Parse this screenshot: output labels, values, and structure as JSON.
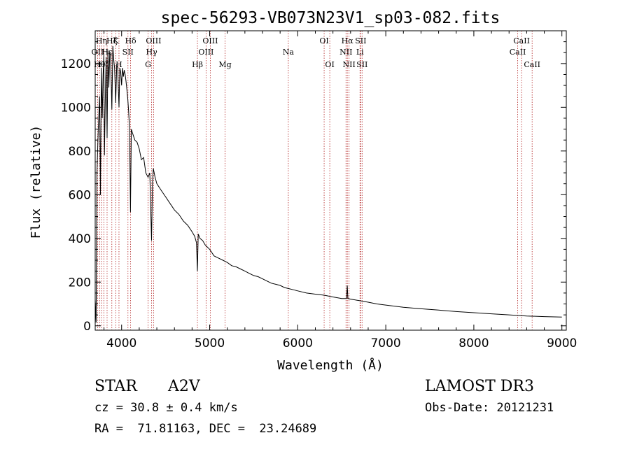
{
  "chart_data": {
    "type": "line",
    "title": "spec-56293-VB073N23V1_sp03-082.fits",
    "xlabel": "Wavelength (Å)",
    "ylabel": "Flux (relative)",
    "xlim": [
      3700,
      9050
    ],
    "ylim": [
      -20,
      1350
    ],
    "xticks": [
      4000,
      5000,
      6000,
      7000,
      8000,
      9000
    ],
    "xtick_labels": [
      "4000",
      "5000",
      "6000",
      "7000",
      "8000",
      "9000"
    ],
    "yticks": [
      0,
      200,
      400,
      600,
      800,
      1000,
      1200
    ],
    "ytick_labels": [
      "0",
      "200",
      "400",
      "600",
      "800",
      "1000",
      "1200"
    ],
    "series": [
      {
        "name": "flux",
        "x": [
          3700,
          3710,
          3720,
          3735,
          3750,
          3760,
          3770,
          3780,
          3790,
          3798,
          3805,
          3815,
          3825,
          3835,
          3845,
          3855,
          3865,
          3875,
          3889,
          3900,
          3910,
          3920,
          3933,
          3945,
          3955,
          3970,
          3980,
          3990,
          4000,
          4010,
          4020,
          4030,
          4040,
          4050,
          4060,
          4070,
          4080,
          4090,
          4101,
          4110,
          4125,
          4150,
          4175,
          4200,
          4225,
          4250,
          4275,
          4300,
          4320,
          4340,
          4350,
          4360,
          4380,
          4400,
          4450,
          4500,
          4550,
          4600,
          4650,
          4700,
          4750,
          4800,
          4830,
          4850,
          4861,
          4870,
          4890,
          4920,
          4950,
          5000,
          5050,
          5100,
          5150,
          5200,
          5250,
          5300,
          5350,
          5400,
          5450,
          5500,
          5550,
          5600,
          5650,
          5700,
          5750,
          5800,
          5850,
          5900,
          5950,
          6000,
          6100,
          6200,
          6300,
          6400,
          6500,
          6555,
          6563,
          6570,
          6600,
          6700,
          6800,
          6900,
          7000,
          7200,
          7400,
          7600,
          7800,
          8000,
          8200,
          8400,
          8600,
          8800,
          9000
        ],
        "values": [
          120,
          15,
          700,
          900,
          1050,
          600,
          1180,
          950,
          1150,
          1240,
          780,
          1050,
          1230,
          860,
          1260,
          1090,
          1250,
          1240,
          990,
          1280,
          1220,
          1180,
          1020,
          1200,
          1180,
          1000,
          1180,
          1160,
          1100,
          1180,
          1140,
          1170,
          1150,
          1120,
          1080,
          1040,
          980,
          900,
          520,
          900,
          880,
          850,
          840,
          810,
          760,
          770,
          700,
          680,
          700,
          390,
          650,
          720,
          680,
          650,
          620,
          590,
          560,
          530,
          510,
          480,
          460,
          430,
          410,
          380,
          250,
          420,
          400,
          390,
          370,
          350,
          320,
          310,
          300,
          290,
          275,
          270,
          260,
          250,
          240,
          230,
          225,
          215,
          205,
          195,
          190,
          185,
          175,
          170,
          165,
          160,
          150,
          145,
          140,
          132,
          125,
          125,
          185,
          125,
          122,
          115,
          108,
          100,
          95,
          85,
          78,
          72,
          65,
          60,
          55,
          50,
          45,
          42,
          40
        ]
      }
    ],
    "lines": [
      {
        "wavelength": 3727,
        "label": "OII",
        "row": 2
      },
      {
        "wavelength": 3750,
        "label": "Hθ",
        "row": 3
      },
      {
        "wavelength": 3771,
        "label": "Hη",
        "row": 1
      },
      {
        "wavelength": 3798,
        "label": "Hζ",
        "row": 3
      },
      {
        "wavelength": 3835,
        "label": "Hε",
        "row": 2
      },
      {
        "wavelength": 3889,
        "label": "Hζ",
        "row": 1
      },
      {
        "wavelength": 3934,
        "label": "K",
        "row": 1
      },
      {
        "wavelength": 3970,
        "label": "H",
        "row": 3
      },
      {
        "wavelength": 4072,
        "label": "SII",
        "row": 2
      },
      {
        "wavelength": 4102,
        "label": "Hδ",
        "row": 1
      },
      {
        "wavelength": 4300,
        "label": "G",
        "row": 3
      },
      {
        "wavelength": 4341,
        "label": "Hγ",
        "row": 2
      },
      {
        "wavelength": 4363,
        "label": "OIII",
        "row": 1
      },
      {
        "wavelength": 4861,
        "label": "Hβ",
        "row": 3
      },
      {
        "wavelength": 4959,
        "label": "OIII",
        "row": 2
      },
      {
        "wavelength": 5007,
        "label": "OIII",
        "row": 1
      },
      {
        "wavelength": 5175,
        "label": "Mg",
        "row": 3
      },
      {
        "wavelength": 5893,
        "label": "Na",
        "row": 2
      },
      {
        "wavelength": 6300,
        "label": "OI",
        "row": 1
      },
      {
        "wavelength": 6364,
        "label": "OI",
        "row": 3
      },
      {
        "wavelength": 6548,
        "label": "NII",
        "row": 2
      },
      {
        "wavelength": 6563,
        "label": "Hα",
        "row": 1
      },
      {
        "wavelength": 6583,
        "label": "NII",
        "row": 3
      },
      {
        "wavelength": 6707,
        "label": "Li",
        "row": 2
      },
      {
        "wavelength": 6716,
        "label": "SII",
        "row": 1
      },
      {
        "wavelength": 6731,
        "label": "SII",
        "row": 3
      },
      {
        "wavelength": 8498,
        "label": "CaII",
        "row": 2
      },
      {
        "wavelength": 8542,
        "label": "CaII",
        "row": 1
      },
      {
        "wavelength": 8662,
        "label": "CaII",
        "row": 3
      }
    ]
  },
  "info": {
    "object_class": "STAR",
    "subclass": "A2V",
    "survey": "LAMOST DR3",
    "cz": "cz = 30.8 ± 0.4 km/s",
    "obs_date": "Obs-Date: 20121231",
    "coords": "RA =  71.81163, DEC =  23.24689"
  },
  "colors": {
    "line_marker": "#b22222",
    "spectrum": "#000000"
  }
}
